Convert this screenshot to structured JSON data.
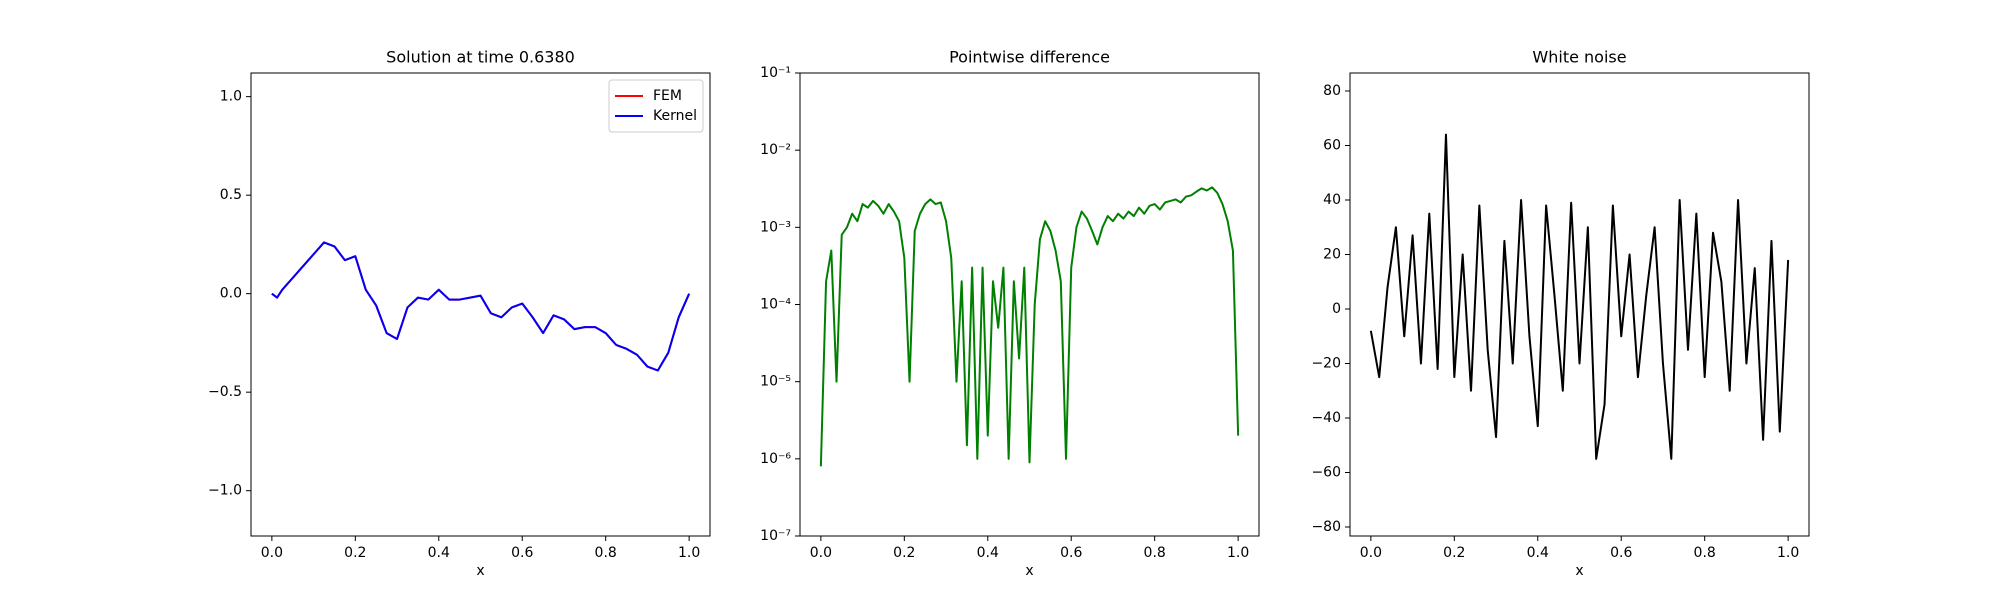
{
  "chart_data": [
    {
      "type": "line",
      "title": "Solution at time 0.6380",
      "xlabel": "x",
      "x": [
        0,
        0.0125,
        0.025,
        0.05,
        0.075,
        0.1,
        0.125,
        0.15,
        0.175,
        0.2,
        0.225,
        0.25,
        0.275,
        0.3,
        0.325,
        0.35,
        0.375,
        0.4,
        0.425,
        0.45,
        0.475,
        0.5,
        0.525,
        0.55,
        0.575,
        0.6,
        0.625,
        0.65,
        0.675,
        0.7,
        0.725,
        0.75,
        0.775,
        0.8,
        0.825,
        0.85,
        0.875,
        0.9,
        0.925,
        0.95,
        0.975,
        1.0
      ],
      "series": [
        {
          "name": "FEM",
          "color": "#ff0000",
          "values": [
            0.0,
            -0.02,
            0.02,
            0.08,
            0.14,
            0.2,
            0.26,
            0.24,
            0.17,
            0.19,
            0.02,
            -0.06,
            -0.2,
            -0.23,
            -0.07,
            -0.02,
            -0.03,
            0.02,
            -0.03,
            -0.03,
            -0.02,
            -0.01,
            -0.1,
            -0.12,
            -0.07,
            -0.05,
            -0.12,
            -0.2,
            -0.11,
            -0.13,
            -0.18,
            -0.17,
            -0.17,
            -0.2,
            -0.26,
            -0.28,
            -0.31,
            -0.37,
            -0.39,
            -0.3,
            -0.12,
            0.0
          ]
        },
        {
          "name": "Kernel",
          "color": "#0000ff",
          "values": [
            0.0,
            -0.02,
            0.02,
            0.08,
            0.14,
            0.2,
            0.26,
            0.24,
            0.17,
            0.19,
            0.02,
            -0.06,
            -0.2,
            -0.23,
            -0.07,
            -0.02,
            -0.03,
            0.02,
            -0.03,
            -0.03,
            -0.02,
            -0.01,
            -0.1,
            -0.12,
            -0.07,
            -0.05,
            -0.12,
            -0.2,
            -0.11,
            -0.13,
            -0.18,
            -0.17,
            -0.17,
            -0.2,
            -0.26,
            -0.28,
            -0.31,
            -0.37,
            -0.39,
            -0.3,
            -0.12,
            0.0
          ]
        }
      ],
      "xlim": [
        -0.05,
        1.05
      ],
      "ylim": [
        -1.23,
        1.12
      ],
      "xticks": [
        {
          "value": 0,
          "label": "0.0"
        },
        0.2,
        0.4,
        0.6,
        0.8,
        {
          "value": 1,
          "label": "1.0"
        }
      ],
      "yticks": [
        {
          "value": -1,
          "label": "−1.0"
        },
        {
          "value": -0.5,
          "label": "−0.5"
        },
        {
          "value": 0,
          "label": "0.0"
        },
        0.5,
        {
          "value": 1,
          "label": "1.0"
        }
      ],
      "legend": "upper right"
    },
    {
      "type": "line",
      "title": "Pointwise difference",
      "xlabel": "x",
      "yscale": "log",
      "x": [
        0,
        0.0125,
        0.025,
        0.0375,
        0.05,
        0.0625,
        0.075,
        0.0875,
        0.1,
        0.1125,
        0.125,
        0.1375,
        0.15,
        0.1625,
        0.175,
        0.1875,
        0.2,
        0.2125,
        0.225,
        0.2375,
        0.25,
        0.2625,
        0.275,
        0.2875,
        0.3,
        0.3125,
        0.325,
        0.3375,
        0.35,
        0.3625,
        0.375,
        0.3875,
        0.4,
        0.4125,
        0.425,
        0.4375,
        0.45,
        0.4625,
        0.475,
        0.4875,
        0.5,
        0.5125,
        0.525,
        0.5375,
        0.55,
        0.5625,
        0.575,
        0.5875,
        0.6,
        0.6125,
        0.625,
        0.6375,
        0.65,
        0.6625,
        0.675,
        0.6875,
        0.7,
        0.7125,
        0.725,
        0.7375,
        0.75,
        0.7625,
        0.775,
        0.7875,
        0.8,
        0.8125,
        0.825,
        0.8375,
        0.85,
        0.8625,
        0.875,
        0.8875,
        0.9,
        0.9125,
        0.925,
        0.9375,
        0.95,
        0.9625,
        0.975,
        0.9875,
        1.0
      ],
      "series": [
        {
          "color": "#008000",
          "values": [
            8e-07,
            0.0002,
            0.0005,
            1e-05,
            0.0008,
            0.001,
            0.0015,
            0.0012,
            0.002,
            0.0018,
            0.0022,
            0.0019,
            0.0015,
            0.002,
            0.0016,
            0.0012,
            0.0004,
            1e-05,
            0.0009,
            0.0015,
            0.002,
            0.0023,
            0.002,
            0.0021,
            0.0012,
            0.0004,
            1e-05,
            0.0002,
            1.5e-06,
            0.0003,
            1e-06,
            0.0003,
            2e-06,
            0.0002,
            5e-05,
            0.0003,
            1e-06,
            0.0002,
            2e-05,
            0.0003,
            9e-07,
            0.0001,
            0.0007,
            0.0012,
            0.0009,
            0.0005,
            0.0002,
            1e-06,
            0.0003,
            0.001,
            0.0016,
            0.0013,
            0.0009,
            0.0006,
            0.001,
            0.0014,
            0.0012,
            0.0015,
            0.0013,
            0.0016,
            0.0014,
            0.0018,
            0.0015,
            0.0019,
            0.002,
            0.0017,
            0.0021,
            0.0022,
            0.0023,
            0.0021,
            0.0025,
            0.0026,
            0.0029,
            0.0032,
            0.003,
            0.0033,
            0.0028,
            0.002,
            0.0012,
            0.0005,
            2e-06
          ]
        }
      ],
      "xlim": [
        -0.05,
        1.05
      ],
      "ylim": [
        1e-07,
        0.1
      ],
      "xticks": [
        {
          "value": 0,
          "label": "0.0"
        },
        0.2,
        0.4,
        0.6,
        0.8,
        {
          "value": 1,
          "label": "1.0"
        }
      ],
      "yticks": [
        {
          "value": 1e-07,
          "label": "10⁻⁷"
        },
        {
          "value": 1e-06,
          "label": "10⁻⁶"
        },
        {
          "value": 1e-05,
          "label": "10⁻⁵"
        },
        {
          "value": 0.0001,
          "label": "10⁻⁴"
        },
        {
          "value": 0.001,
          "label": "10⁻³"
        },
        {
          "value": 0.01,
          "label": "10⁻²"
        },
        {
          "value": 0.1,
          "label": "10⁻¹"
        }
      ]
    },
    {
      "type": "line",
      "title": "White noise",
      "xlabel": "x",
      "x": [
        0,
        0.02,
        0.04,
        0.06,
        0.08,
        0.1,
        0.12,
        0.14,
        0.16,
        0.18,
        0.2,
        0.22,
        0.24,
        0.26,
        0.28,
        0.3,
        0.32,
        0.34,
        0.36,
        0.38,
        0.4,
        0.42,
        0.44,
        0.46,
        0.48,
        0.5,
        0.52,
        0.54,
        0.56,
        0.58,
        0.6,
        0.62,
        0.64,
        0.66,
        0.68,
        0.7,
        0.72,
        0.74,
        0.76,
        0.78,
        0.8,
        0.82,
        0.84,
        0.86,
        0.88,
        0.9,
        0.92,
        0.94,
        0.96,
        0.98,
        1.0
      ],
      "series": [
        {
          "color": "#000000",
          "values": [
            -8,
            -25,
            8,
            30,
            -10,
            27,
            -20,
            35,
            -22,
            64,
            -25,
            20,
            -30,
            38,
            -15,
            -47,
            25,
            -20,
            40,
            -10,
            -43,
            38,
            5,
            -30,
            39,
            -20,
            30,
            -55,
            -35,
            38,
            -10,
            20,
            -25,
            5,
            30,
            -20,
            -55,
            40,
            -15,
            35,
            -25,
            28,
            10,
            -30,
            40,
            -20,
            15,
            -48,
            25,
            -45,
            18
          ]
        }
      ],
      "xlim": [
        -0.05,
        1.05
      ],
      "ylim": [
        -83.3,
        86.6
      ],
      "xticks": [
        {
          "value": 0,
          "label": "0.0"
        },
        0.2,
        0.4,
        0.6,
        0.8,
        {
          "value": 1,
          "label": "1.0"
        }
      ],
      "yticks": [
        {
          "value": -80,
          "label": "−80"
        },
        {
          "value": -60,
          "label": "−60"
        },
        {
          "value": -40,
          "label": "−40"
        },
        {
          "value": -20,
          "label": "−20"
        },
        0,
        20,
        40,
        60,
        80
      ]
    }
  ]
}
